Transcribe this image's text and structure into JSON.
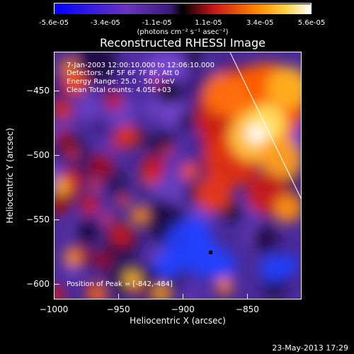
{
  "colorbar": {
    "tick_labels": [
      "-5.6e-05",
      "-3.4e-05",
      "-1.1e-05",
      "1.1e-05",
      "3.4e-05",
      "5.6e-05"
    ],
    "unit": "(photons cm⁻² s⁻¹ asec⁻²)"
  },
  "info": {
    "time": "7-Jan-2003 12:00:10.000 to 12:06:10.000",
    "detectors": "Detectors: 4F 5F 6F 7F 8F, Att 0",
    "energy": "Energy Range: 25.0 - 50.0 keV",
    "clean": "Clean    Total counts: 4.05E+03",
    "peak": "Position of Peak = [-842,-484]"
  },
  "footer": {
    "stamp": "23-May-2013 17:29"
  },
  "chart_data": {
    "type": "heatmap",
    "title": "Reconstructed RHESSI Image",
    "xlabel": "Heliocentric X (arcsec)",
    "ylabel": "Heliocentric Y (arcsec)",
    "xlim": [
      -1000,
      -808
    ],
    "ylim": [
      -612,
      -420
    ],
    "x_ticks": [
      -1000,
      -950,
      -900,
      -850
    ],
    "y_ticks": [
      -450,
      -500,
      -550,
      -600
    ],
    "colorbar_range": [
      -5.6e-05,
      5.6e-05
    ],
    "peak_position": [
      -842,
      -484
    ],
    "grid": false
  }
}
